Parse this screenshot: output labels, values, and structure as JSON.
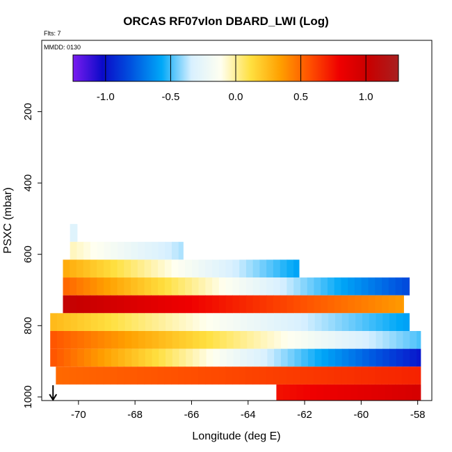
{
  "chart_data": {
    "type": "heatmap",
    "title": "ORCAS RF07vlon DBARD_LWI (Log)",
    "flts_note": "Flts: 7",
    "mmdd_note": "MMDD: 0130",
    "xlabel": "Longitude (deg E)",
    "ylabel": "PSXC (mbar)",
    "xlim": [
      -71.3,
      -57.5
    ],
    "ylim": [
      1010,
      0
    ],
    "x_ticks": [
      -70,
      -68,
      -66,
      -64,
      -62,
      -60,
      -58
    ],
    "x_tick_labels": [
      "-70",
      "-68",
      "-66",
      "-64",
      "-62",
      "-60",
      "-58"
    ],
    "y_ticks": [
      200,
      400,
      600,
      800,
      1000
    ],
    "y_tick_labels": [
      "200",
      "400",
      "600",
      "800",
      "1000"
    ],
    "colorbar": {
      "range": [
        -1.25,
        1.25
      ],
      "ticks": [
        -1.0,
        -0.5,
        0.0,
        0.5,
        1.0
      ],
      "tick_labels": [
        "-1.0",
        "-0.5",
        "0.0",
        "0.5",
        "1.0"
      ],
      "colors": [
        "#7a1cf0",
        "#0a0ac8",
        "#0055e0",
        "#00a8f8",
        "#d8f0ff",
        "#fffff0",
        "#ffe040",
        "#ffa000",
        "#ff5000",
        "#ef0000",
        "#c80000",
        "#a82020"
      ]
    },
    "bands": [
      {
        "p_top": 515,
        "p_bot": 565,
        "lon_start": -70.3,
        "lon_end": -70.05,
        "v_start": -0.3,
        "v_end": -0.3
      },
      {
        "p_top": 565,
        "p_bot": 615,
        "lon_start": -70.3,
        "lon_end": -66.3,
        "v_start": -0.05,
        "v_end": -0.4
      },
      {
        "p_top": 615,
        "p_bot": 665,
        "lon_start": -70.55,
        "lon_end": -62.2,
        "v_start": 0.3,
        "v_end": -0.6
      },
      {
        "p_top": 665,
        "p_bot": 715,
        "lon_start": -70.55,
        "lon_end": -58.3,
        "v_start": 0.5,
        "v_end": -0.85
      },
      {
        "p_top": 715,
        "p_bot": 765,
        "lon_start": -70.55,
        "lon_end": -58.5,
        "v_start": 1.05,
        "v_end": 0.35
      },
      {
        "p_top": 765,
        "p_bot": 815,
        "lon_start": -71.0,
        "lon_end": -58.3,
        "v_start": 0.25,
        "v_end": -0.6
      },
      {
        "p_top": 815,
        "p_bot": 865,
        "lon_start": -71.0,
        "lon_end": -57.9,
        "v_start": 0.55,
        "v_end": -0.5
      },
      {
        "p_top": 865,
        "p_bot": 915,
        "lon_start": -71.0,
        "lon_end": -57.9,
        "v_start": 0.55,
        "v_end": -1.0
      },
      {
        "p_top": 915,
        "p_bot": 965,
        "lon_start": -70.8,
        "lon_end": -57.9,
        "v_start": 0.5,
        "v_end": 0.7
      },
      {
        "p_top": 965,
        "p_bot": 1010,
        "lon_start": -63.0,
        "lon_end": -57.9,
        "v_start": 0.75,
        "v_end": 0.95
      }
    ],
    "marker_arrow_lon": -70.9
  }
}
